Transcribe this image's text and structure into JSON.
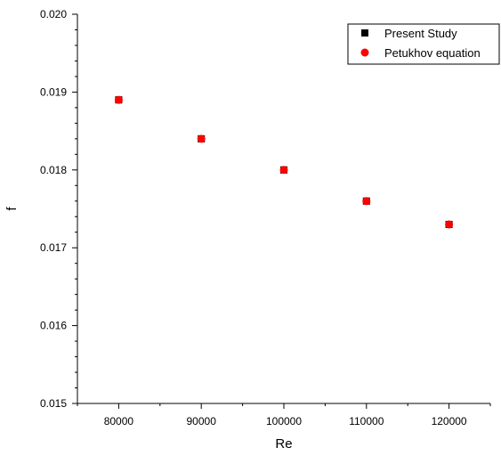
{
  "chart_data": {
    "type": "scatter",
    "xlabel": "Re",
    "ylabel": "f",
    "xlim": [
      75000,
      125000
    ],
    "ylim": [
      0.015,
      0.02
    ],
    "x_ticks": [
      80000,
      90000,
      100000,
      110000,
      120000
    ],
    "x_tick_labels": [
      "80000",
      "90000",
      "100000",
      "110000",
      "120000"
    ],
    "y_ticks": [
      0.015,
      0.016,
      0.017,
      0.018,
      0.019,
      0.02
    ],
    "y_tick_labels": [
      "0.015",
      "0.016",
      "0.017",
      "0.018",
      "0.019",
      "0.020"
    ],
    "grid": false,
    "legend_position": "top-right",
    "series": [
      {
        "name": "Present Study",
        "marker": "square",
        "color": "#000000",
        "x": [
          80000,
          90000,
          100000,
          110000,
          120000
        ],
        "y": [
          0.0189,
          0.0184,
          0.018,
          0.0176,
          0.0173
        ]
      },
      {
        "name": "Petukhov equation",
        "marker": "circle",
        "color": "#ff0000",
        "x": [
          80000,
          90000,
          100000,
          110000,
          120000
        ],
        "y": [
          0.0189,
          0.0184,
          0.018,
          0.0176,
          0.0173
        ]
      }
    ]
  }
}
